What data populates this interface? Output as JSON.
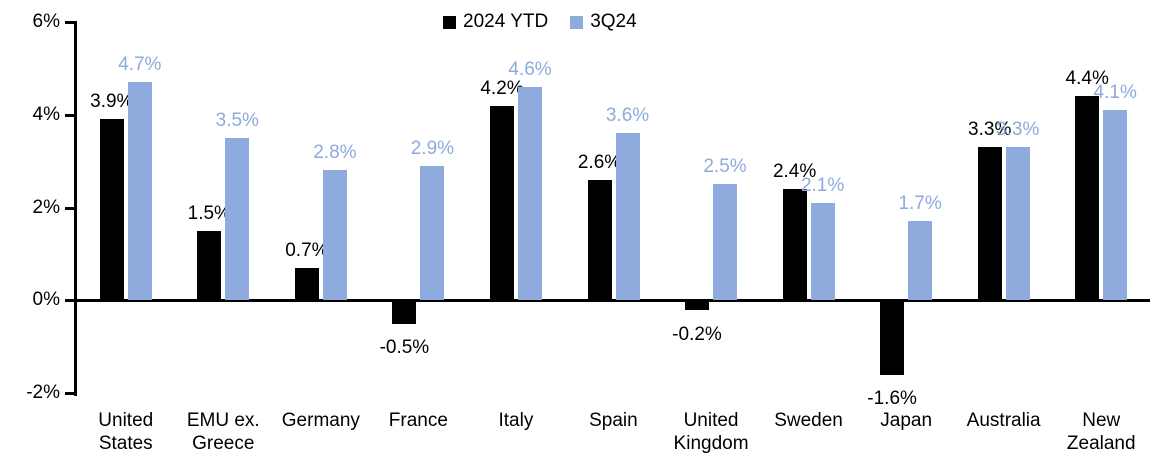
{
  "chart_data": {
    "type": "bar",
    "title": "",
    "xlabel": "",
    "ylabel": "",
    "categories": [
      "United States",
      "EMU ex. Greece",
      "Germany",
      "France",
      "Italy",
      "Spain",
      "United Kingdom",
      "Sweden",
      "Japan",
      "Australia",
      "New Zealand"
    ],
    "series": [
      {
        "name": "2024 YTD",
        "color": "#000000",
        "values": [
          3.9,
          1.5,
          0.7,
          -0.5,
          4.2,
          2.6,
          -0.2,
          2.4,
          -1.6,
          3.3,
          4.4
        ],
        "labels": [
          "3.9%",
          "1.5%",
          "0.7%",
          "-0.5%",
          "4.2%",
          "2.6%",
          "-0.2%",
          "2.4%",
          "-1.6%",
          "3.3%",
          "4.4%"
        ]
      },
      {
        "name": "3Q24",
        "color": "#8FAADC",
        "values": [
          4.7,
          3.5,
          2.8,
          2.9,
          4.6,
          3.6,
          2.5,
          2.1,
          1.7,
          3.3,
          4.1
        ],
        "labels": [
          "4.7%",
          "3.5%",
          "2.8%",
          "2.9%",
          "4.6%",
          "3.6%",
          "2.5%",
          "2.1%",
          "1.7%",
          "3.3%",
          "4.1%"
        ]
      }
    ],
    "ylim": [
      -2,
      6
    ],
    "ytick_labels": [
      "6%",
      "4%",
      "2%",
      "0%",
      "-2%"
    ],
    "ytick_values": [
      6,
      4,
      2,
      0,
      -2
    ],
    "legend_position": "top-center",
    "grid": false,
    "axis_color": "#000000",
    "background_color": "#FFFFFF"
  }
}
